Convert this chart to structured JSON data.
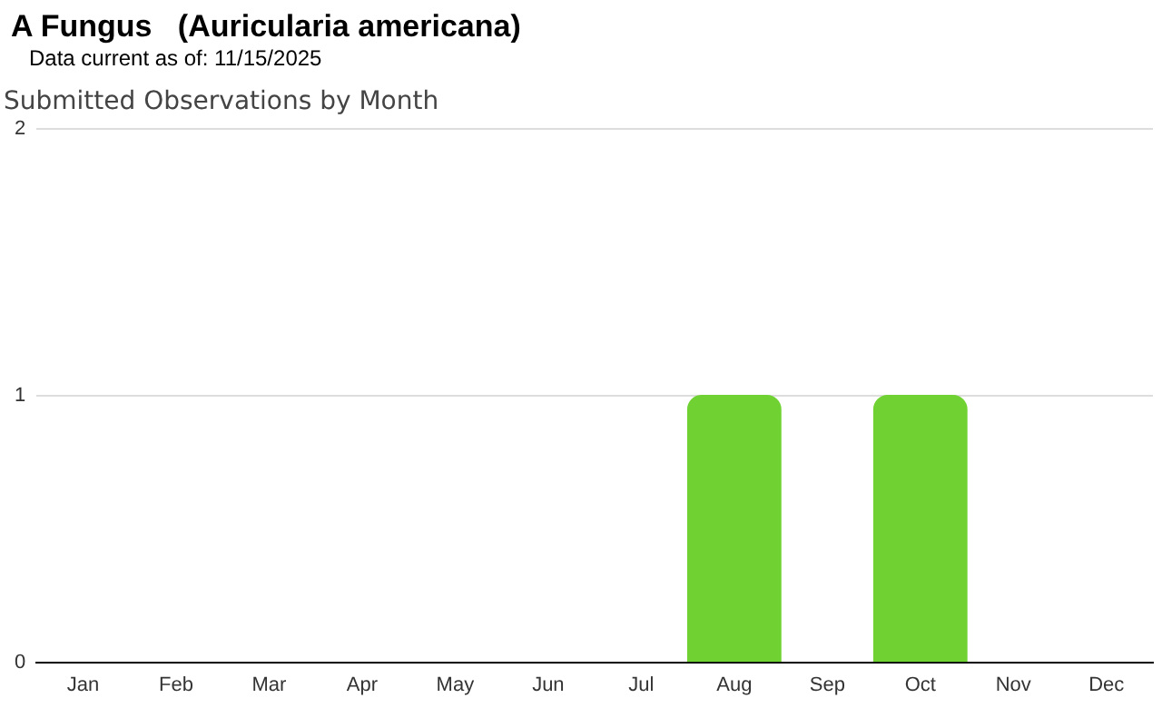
{
  "chart_data": {
    "type": "bar",
    "title": "A Fungus   (Auricularia americana)",
    "subtitle": "Data current as of: 11/15/2025",
    "annotations": [
      "Submitted Observations by Month"
    ],
    "categories": [
      "Jan",
      "Feb",
      "Mar",
      "Apr",
      "May",
      "Jun",
      "Jul",
      "Aug",
      "Sep",
      "Oct",
      "Nov",
      "Dec"
    ],
    "values": [
      0,
      0,
      0,
      0,
      0,
      0,
      0,
      1,
      0,
      1,
      0,
      0
    ],
    "color": "#6fd232",
    "ylim": [
      0,
      2
    ],
    "yticks": [
      0,
      1,
      2
    ],
    "grid": "y",
    "legend": false
  }
}
